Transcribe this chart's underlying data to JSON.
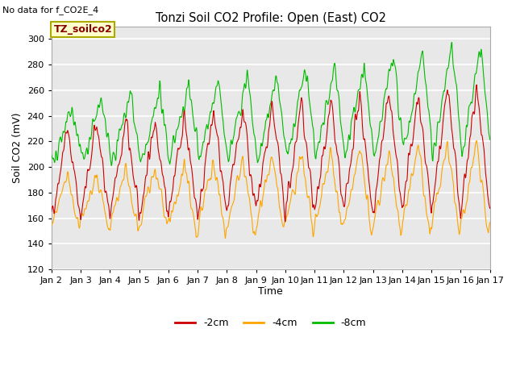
{
  "title": "Tonzi Soil CO2 Profile: Open (East) CO2",
  "subtitle": "No data for f_CO2E_4",
  "ylabel": "Soil CO2 (mV)",
  "xlabel": "Time",
  "ylim": [
    120,
    310
  ],
  "yticks": [
    120,
    140,
    160,
    180,
    200,
    220,
    240,
    260,
    280,
    300
  ],
  "xtick_labels": [
    "Jan 2",
    "Jan 3",
    "Jan 4",
    "Jan 5",
    "Jan 6",
    "Jan 7",
    "Jan 8",
    "Jan 9",
    "Jan 10",
    "Jan 11",
    "Jan 12",
    "Jan 13",
    "Jan 14",
    "Jan 15",
    "Jan 16",
    "Jan 17"
  ],
  "legend_labels": [
    "-2cm",
    "-4cm",
    "-8cm"
  ],
  "line_colors": [
    "#cc0000",
    "#ffa500",
    "#00bb00"
  ],
  "annotation_box": "TZ_soilco2",
  "annotation_box_bg": "#ffffcc",
  "annotation_box_edge": "#aaaa00",
  "bg_color": "#ffffff",
  "plot_bg_color": "#e8e8e8",
  "grid_color": "#ffffff",
  "n_points": 2160,
  "seed": 42
}
